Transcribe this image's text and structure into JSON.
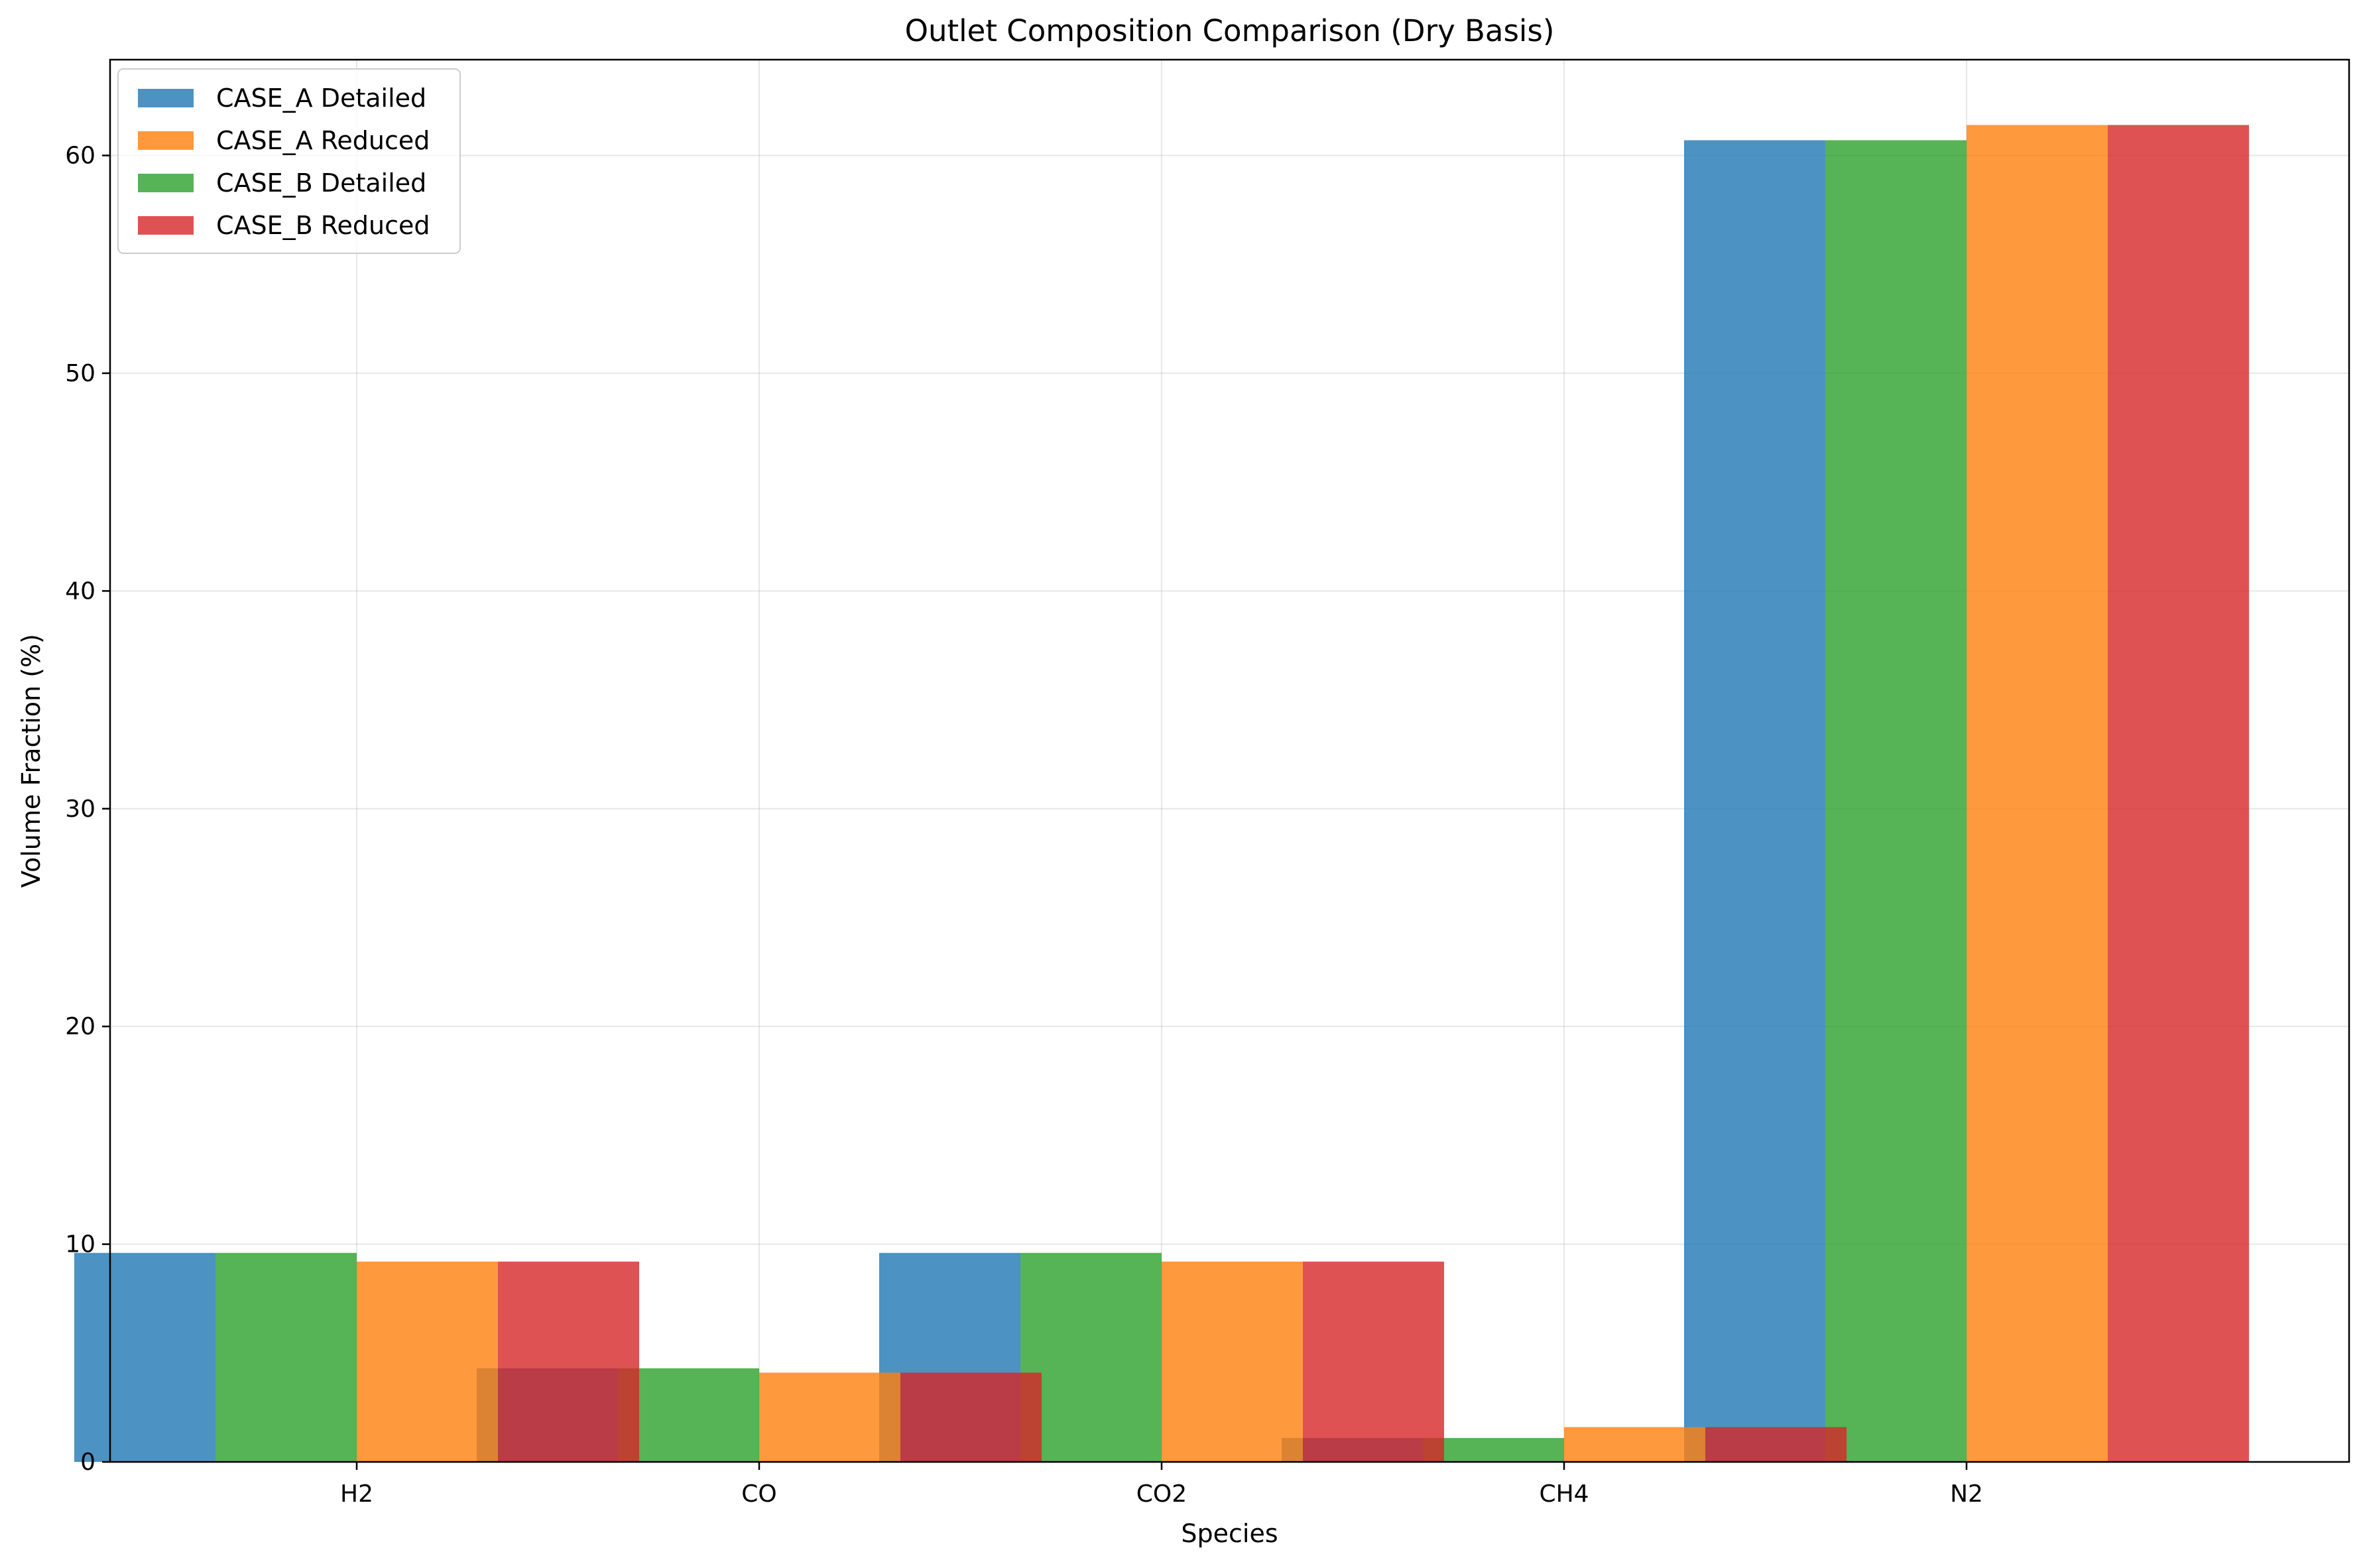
{
  "chart_data": {
    "type": "bar",
    "title": "Outlet Composition Comparison (Dry Basis)",
    "xlabel": "Species",
    "ylabel": "Volume Fraction (%)",
    "categories": [
      "H2",
      "CO",
      "CO2",
      "CH4",
      "N2"
    ],
    "ylim": [
      0,
      64.4
    ],
    "yticks": [
      0,
      10,
      20,
      30,
      40,
      50,
      60
    ],
    "grid": true,
    "legend_position": "upper left",
    "series": [
      {
        "name": "CASE_A Detailed",
        "color": "#1f77b4",
        "values": [
          9.6,
          4.3,
          9.6,
          1.1,
          60.7
        ]
      },
      {
        "name": "CASE_A Reduced",
        "color": "#ff7f0e",
        "values": [
          9.2,
          4.1,
          9.2,
          1.6,
          61.4
        ]
      },
      {
        "name": "CASE_B Detailed",
        "color": "#2ca02c",
        "values": [
          9.6,
          4.3,
          9.6,
          1.1,
          60.7
        ]
      },
      {
        "name": "CASE_B Reduced",
        "color": "#d62728",
        "values": [
          9.2,
          4.1,
          9.2,
          1.6,
          61.4
        ]
      }
    ]
  }
}
